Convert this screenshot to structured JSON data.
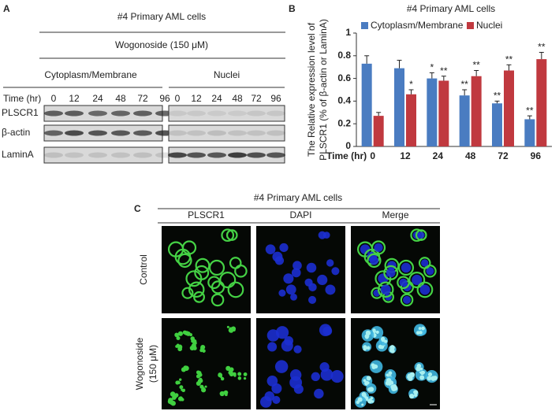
{
  "panel_a": {
    "label": "A",
    "title": "#4 Primary AML cells",
    "treatment": "Wogonoside (150 μM)",
    "time_label": "Time (hr)",
    "groups": [
      {
        "name": "Cytoplasm/Membrane",
        "times": [
          0,
          12,
          24,
          48,
          72,
          96
        ]
      },
      {
        "name": "Nuclei",
        "times": [
          0,
          12,
          24,
          48,
          72,
          96
        ]
      }
    ],
    "rows": [
      "PLSCR1",
      "β-actin",
      "LaminA"
    ]
  },
  "chart_data": {
    "type": "bar",
    "label": "B",
    "title": "#4 Primary AML cells",
    "ylabel": [
      "The Relative expression level of",
      "PLSCR1 (% of β-actin or LaminA)"
    ],
    "xlabel": "Time (hr)",
    "categories": [
      "0",
      "12",
      "24",
      "48",
      "72",
      "96"
    ],
    "series": [
      {
        "name": "Cytoplasm/Membrane",
        "color": "#4a7cc1",
        "values": [
          0.73,
          0.69,
          0.6,
          0.45,
          0.38,
          0.24
        ],
        "errors": [
          0.07,
          0.07,
          0.05,
          0.05,
          0.02,
          0.03
        ],
        "significance": [
          null,
          null,
          "*",
          "**",
          "**",
          "**"
        ]
      },
      {
        "name": "Nuclei",
        "color": "#c0393f",
        "values": [
          0.27,
          0.46,
          0.58,
          0.62,
          0.67,
          0.77
        ],
        "errors": [
          0.03,
          0.04,
          0.04,
          0.05,
          0.05,
          0.06
        ],
        "significance": [
          null,
          "*",
          "**",
          "**",
          "**",
          "**"
        ]
      }
    ],
    "ylim": [
      0,
      1
    ],
    "yticks": [
      0,
      0.2,
      0.4,
      0.6,
      0.8,
      1
    ],
    "legend": "top"
  },
  "panel_c": {
    "label": "C",
    "title": "#4 Primary AML cells",
    "columns": [
      "PLSCR1",
      "DAPI",
      "Merge"
    ],
    "rows": [
      [
        "Control"
      ],
      [
        "Wogonoside",
        "(150 μM)"
      ]
    ]
  }
}
